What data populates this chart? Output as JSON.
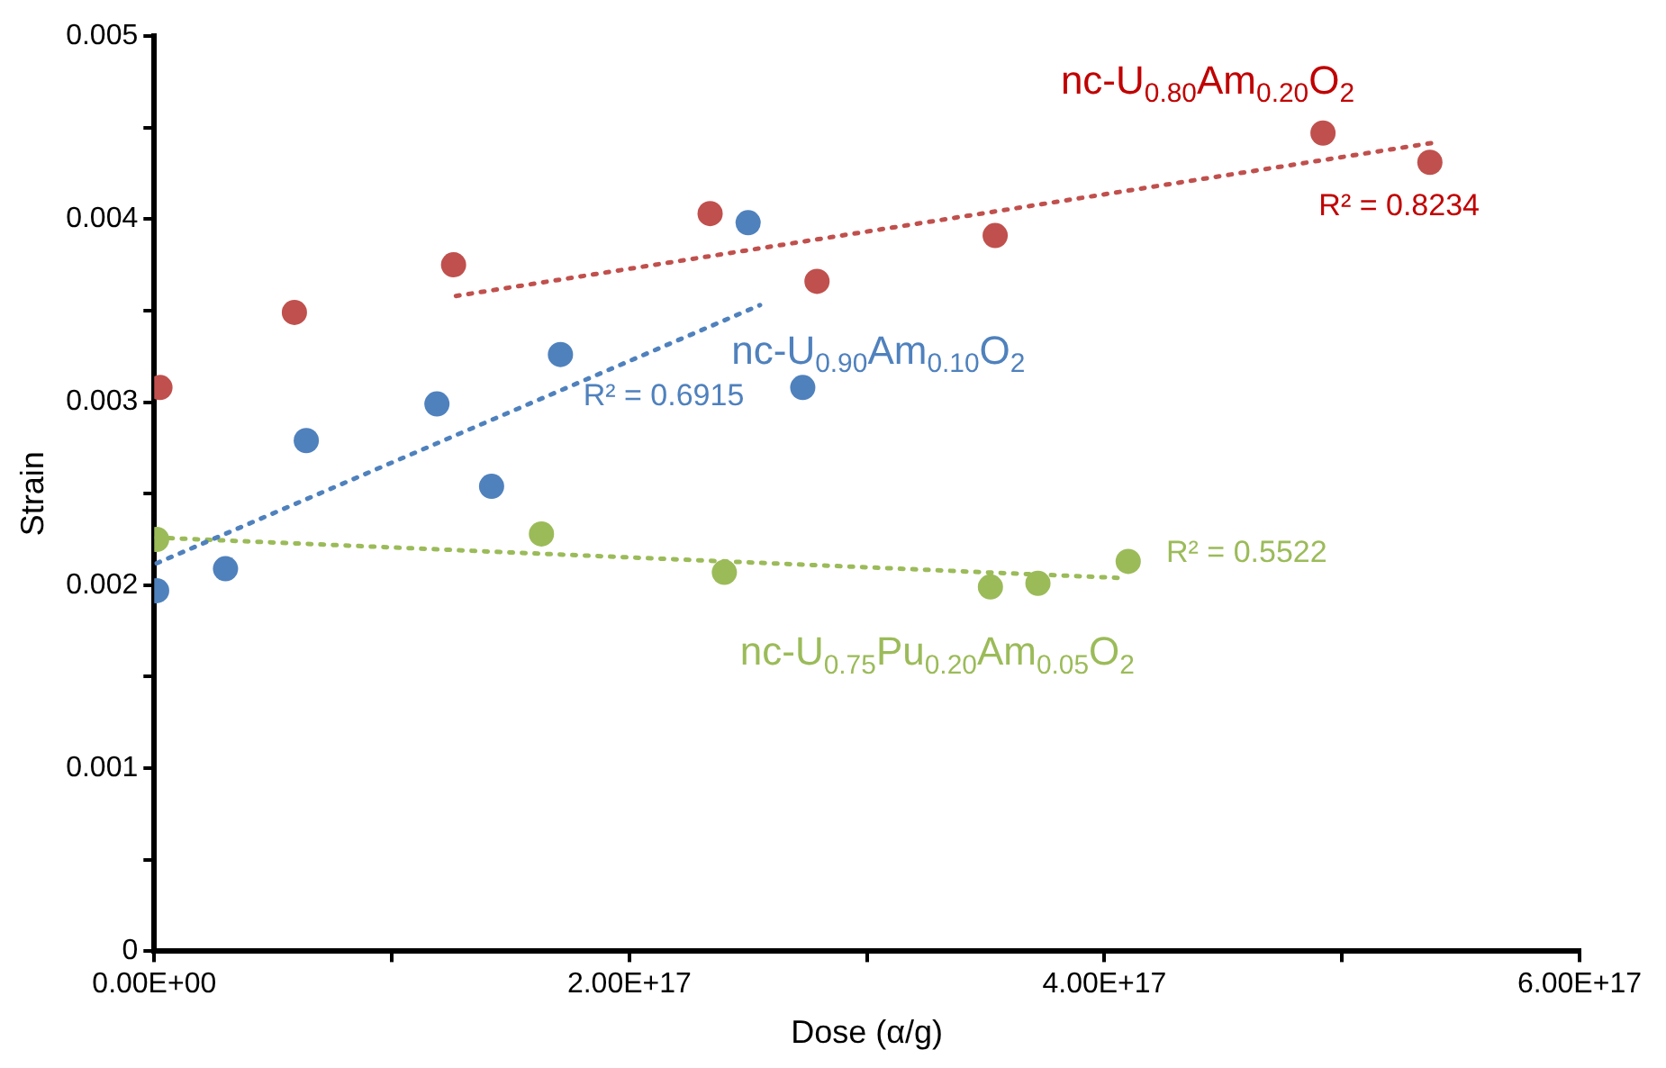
{
  "chart_data": {
    "type": "scatter",
    "xlabel": "Dose (α/g)",
    "ylabel": "Strain",
    "xlim": [
      0,
      6e+17
    ],
    "xticks": [
      {
        "value": 0,
        "label": "0.00E+00"
      },
      {
        "value": 1e+17,
        "label": null
      },
      {
        "value": 2e+17,
        "label": "2.00E+17"
      },
      {
        "value": 3e+17,
        "label": null
      },
      {
        "value": 4e+17,
        "label": "4.00E+17"
      },
      {
        "value": 5e+17,
        "label": null
      },
      {
        "value": 6e+17,
        "label": "6.00E+17"
      }
    ],
    "ylim": [
      0,
      0.005
    ],
    "yticks": [
      0,
      {
        "value": 0.0005,
        "label": null
      },
      0.001,
      {
        "value": 0.0015,
        "label": null
      },
      0.002,
      {
        "value": 0.0025,
        "label": null
      },
      0.003,
      {
        "value": 0.0035,
        "label": null
      },
      0.004,
      {
        "value": 0.0045,
        "label": null
      },
      0.005
    ],
    "grid": false,
    "legend": false,
    "marker": "circle",
    "series": [
      {
        "name": "nc-U$_{0.80}$Am$_{0.20}$O$_{2}$",
        "color": "#c0504d",
        "x": [
          2400000000000000.0,
          5.9e+16,
          1.26e+17,
          2.34e+17,
          2.79e+17,
          3.54e+17,
          4.92e+17,
          5.37e+17
        ],
        "values": [
          0.00308,
          0.00349,
          0.00375,
          0.00403,
          0.00366,
          0.00391,
          0.00447,
          0.00431
        ]
      },
      {
        "name": "nc-U$_{0.90}$Am$_{0.10}$O$_{2}$",
        "color": "#4f81bd",
        "x": [
          1000000000000000.0,
          3e+16,
          6.4e+16,
          1.19e+17,
          1.42e+17,
          1.71e+17,
          2.5e+17,
          2.73e+17
        ],
        "values": [
          0.00197,
          0.00209,
          0.00279,
          0.00299,
          0.00254,
          0.00326,
          0.00398,
          0.00308
        ]
      },
      {
        "name": "nc-U$_{0.75}$Pu$_{0.20}$Am$_{0.05}$O$_{2}$",
        "color": "#9bbb59",
        "x": [
          1000000000000000.0,
          1.63e+17,
          2.4e+17,
          3.52e+17,
          3.72e+17,
          4.1e+17
        ],
        "values": [
          0.00225,
          0.00228,
          0.00207,
          0.00199,
          0.00201,
          0.00213
        ]
      },
      {
        "type": "line",
        "color": "#c0504d",
        "line_style": "dotted",
        "marker": "none",
        "x": [
          1.27e+17,
          5.4e+17
        ],
        "values": [
          0.00358,
          0.00442
        ]
      },
      {
        "type": "line",
        "color": "#4f81bd",
        "line_style": "dotted",
        "marker": "none",
        "x": [
          1000000000000000.0,
          2.55e+17
        ],
        "values": [
          0.00212,
          0.00353
        ]
      },
      {
        "type": "line",
        "color": "#9bbb59",
        "line_style": "dotted",
        "marker": "none",
        "x": [
          1000000000000000.0,
          4.06e+17
        ],
        "values": [
          0.00226,
          0.00204
        ]
      }
    ],
    "annotations": [
      "R² = 0.8234",
      "R² = 0.6915",
      "R² = 0.5522"
    ]
  }
}
